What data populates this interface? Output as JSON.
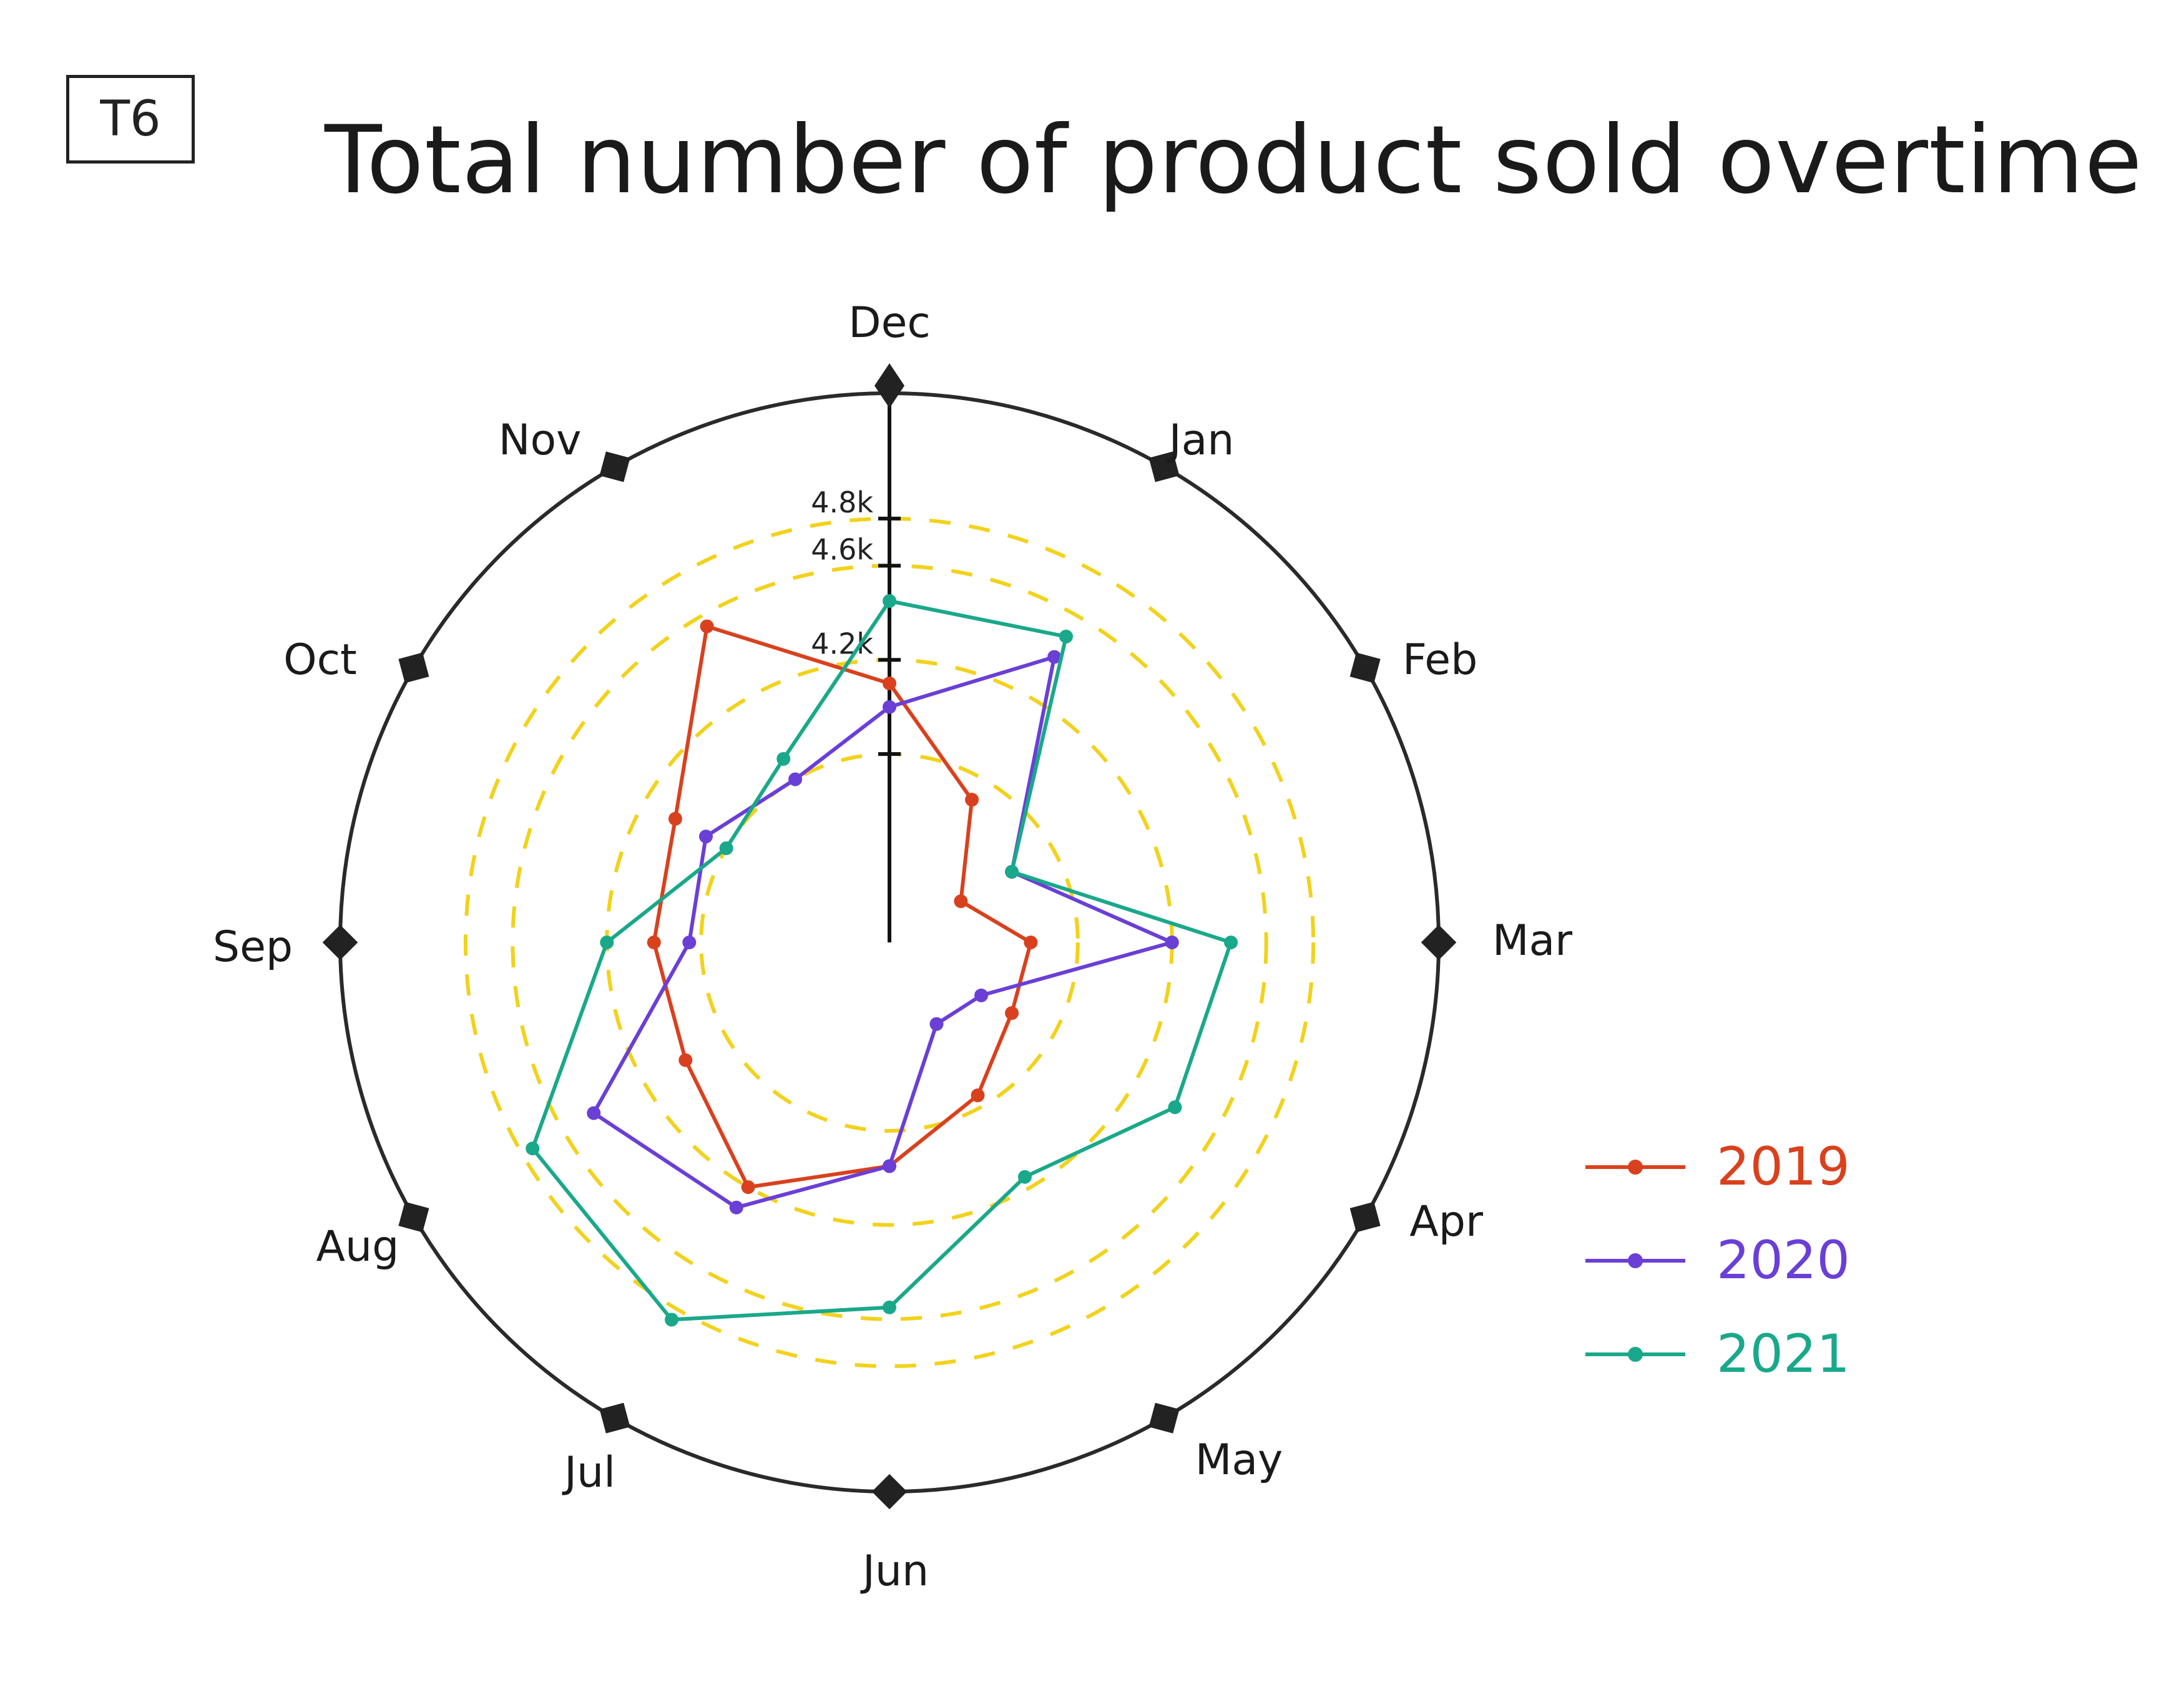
{
  "tag": "T6",
  "chart_data": {
    "type": "radar",
    "title": "Total number of product sold overtime",
    "categories": [
      "Dec",
      "Jan",
      "Feb",
      "Mar",
      "Apr",
      "May",
      "Jun",
      "Jul",
      "Aug",
      "Sep",
      "Oct",
      "Nov"
    ],
    "radial_ticks": [
      "4.2k",
      "4.6k",
      "4.8k"
    ],
    "radial_scale": {
      "rings": [
        {
          "value": 3.8,
          "label": ""
        },
        {
          "value": 4.2,
          "label": "4.2k"
        },
        {
          "value": 4.6,
          "label": "4.6k"
        },
        {
          "value": 4.8,
          "label": "4.8k"
        }
      ],
      "center_value": 3.0,
      "outer_value": 5.2
    },
    "grid": "dashed",
    "legend_position": "right",
    "series": [
      {
        "name": "2019",
        "color": "#d9411e",
        "values": [
          4.1,
          3.7,
          3.35,
          3.6,
          3.6,
          3.75,
          3.95,
          4.2,
          4.0,
          4.0,
          4.05,
          4.55
        ]
      },
      {
        "name": "2020",
        "color": "#6a3fd6",
        "values": [
          4.0,
          4.4,
          3.6,
          4.2,
          3.45,
          3.4,
          3.95,
          4.3,
          4.45,
          3.85,
          3.9,
          3.8
        ]
      },
      {
        "name": "2021",
        "color": "#1aa88a",
        "values": [
          4.45,
          4.5,
          3.6,
          4.45,
          4.4,
          4.15,
          4.55,
          4.85,
          4.75,
          4.2,
          3.8,
          3.9
        ]
      }
    ]
  }
}
